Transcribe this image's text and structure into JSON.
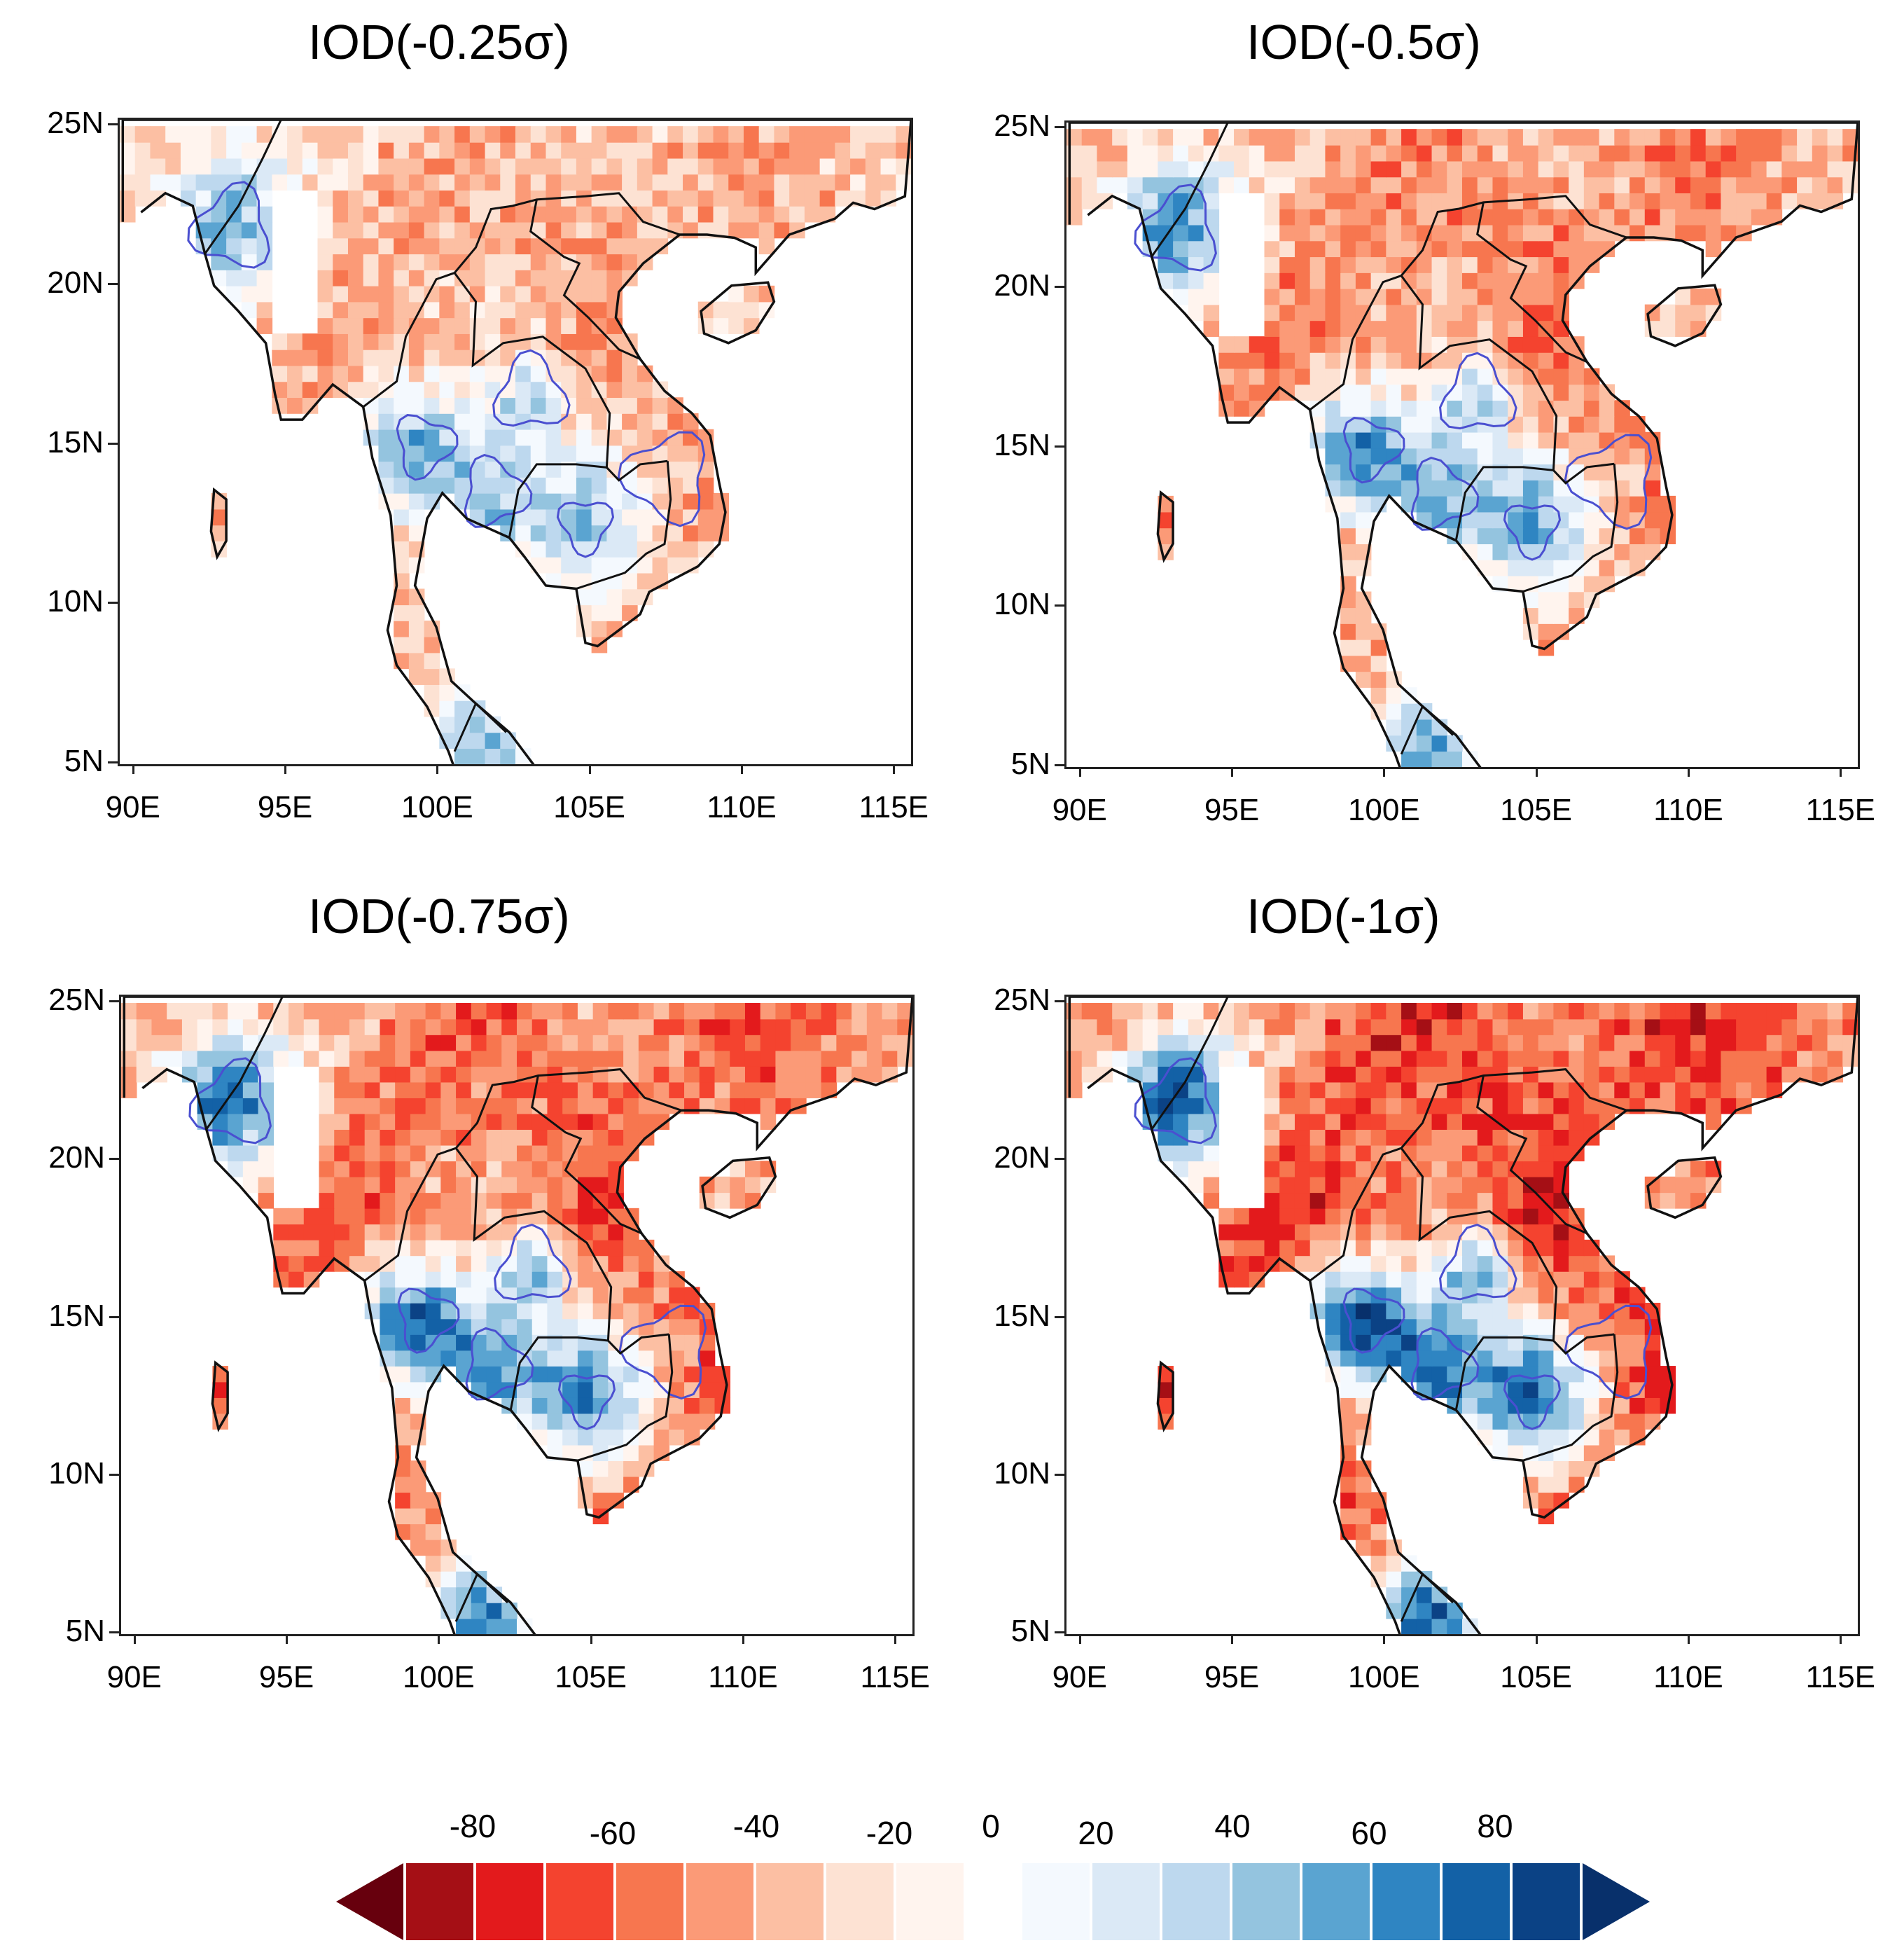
{
  "panels": [
    {
      "title": "IOD(-0.25σ)",
      "intensity": 0.55
    },
    {
      "title": "IOD(-0.5σ)",
      "intensity": 0.7
    },
    {
      "title": "IOD(-0.75σ)",
      "intensity": 0.85
    },
    {
      "title": "IOD(-1σ)",
      "intensity": 1.0
    }
  ],
  "axes": {
    "lat_labels": [
      "25N",
      "20N",
      "15N",
      "10N",
      "5N"
    ],
    "lon_labels": [
      "90E",
      "95E",
      "100E",
      "105E",
      "110E",
      "115E"
    ],
    "lat_range": [
      5,
      25
    ],
    "lon_range": [
      89.5,
      115.5
    ]
  },
  "colorbar": {
    "labels": [
      "-80",
      "-60",
      "-40",
      "-20",
      "0",
      "20",
      "40",
      "60",
      "80"
    ],
    "red_colors": [
      "#67000d",
      "#a50f15",
      "#e31a1c",
      "#f4432f",
      "#f7764f",
      "#fb9a77",
      "#fcbfa3",
      "#fde2d3",
      "#fff4ee"
    ],
    "blue_colors": [
      "#f4f9fe",
      "#dbe9f6",
      "#bdd8ee",
      "#94c4df",
      "#5aa4d1",
      "#2f85c2",
      "#1361a6",
      "#0b4285",
      "#08306b"
    ]
  }
}
